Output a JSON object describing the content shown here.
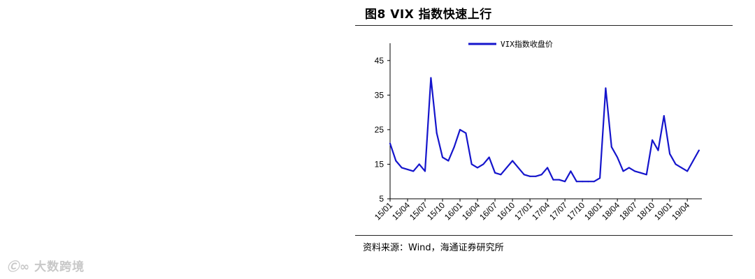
{
  "figure": {
    "title": "图8  VIX 指数快速上行",
    "source": "资料来源：Wind，海通证券研究所"
  },
  "watermark": {
    "logo": "Ⓒ∞",
    "text": "大数跨境"
  },
  "colors": {
    "series": "#1515cc",
    "axis": "#000000",
    "rule": "#222222"
  },
  "chart_data": {
    "type": "line",
    "title": "",
    "xlabel": "",
    "ylabel": "",
    "ylim": [
      5,
      50
    ],
    "yticks": [
      5,
      15,
      25,
      35,
      45
    ],
    "grid": false,
    "legend": "top-center",
    "xtick_labels": [
      "15/01",
      "15/04",
      "15/07",
      "15/10",
      "16/01",
      "16/04",
      "16/07",
      "16/10",
      "17/01",
      "17/04",
      "17/07",
      "17/10",
      "18/01",
      "18/04",
      "18/07",
      "18/10",
      "19/01",
      "19/04"
    ],
    "series": [
      {
        "name": "VIX指数收盘价",
        "x": [
          "15/01",
          "15/02",
          "15/03",
          "15/04",
          "15/05",
          "15/06",
          "15/07",
          "15/08",
          "15/09",
          "15/10",
          "15/11",
          "15/12",
          "16/01",
          "16/02",
          "16/03",
          "16/04",
          "16/05",
          "16/06",
          "16/07",
          "16/08",
          "16/09",
          "16/10",
          "16/11",
          "16/12",
          "17/01",
          "17/02",
          "17/03",
          "17/04",
          "17/05",
          "17/06",
          "17/07",
          "17/08",
          "17/09",
          "17/10",
          "17/11",
          "17/12",
          "18/01",
          "18/02",
          "18/03",
          "18/04",
          "18/05",
          "18/06",
          "18/07",
          "18/08",
          "18/09",
          "18/10",
          "18/11",
          "18/12",
          "19/01",
          "19/02",
          "19/03",
          "19/04",
          "19/05",
          "19/06"
        ],
        "y": [
          21,
          16,
          14,
          13.5,
          13,
          15,
          13,
          40,
          24,
          17,
          16,
          20,
          25,
          24,
          15,
          14,
          15,
          17,
          12.5,
          12,
          14,
          16,
          14,
          12,
          11.5,
          11.5,
          12,
          14,
          10.5,
          10.5,
          10,
          13,
          10,
          10,
          10,
          10,
          11,
          37,
          20,
          17,
          13,
          14,
          13,
          12.5,
          12,
          22,
          19,
          29,
          18,
          15,
          14,
          13,
          16,
          19
        ]
      }
    ]
  }
}
